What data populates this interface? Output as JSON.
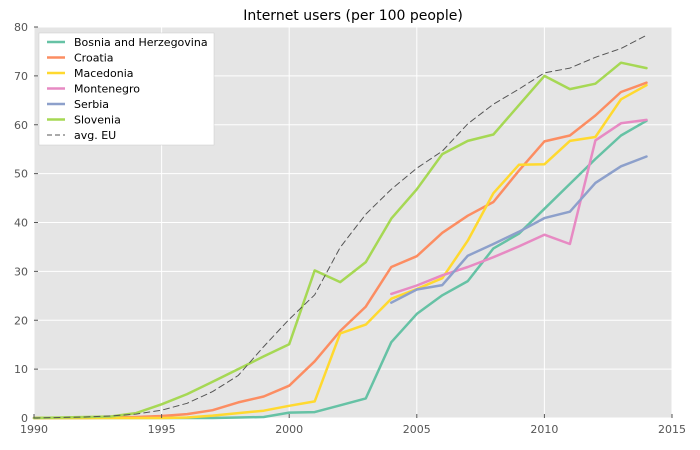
{
  "chart_data": {
    "type": "line",
    "title": "Internet users (per 100 people)",
    "xlabel": "",
    "ylabel": "",
    "xlim": [
      1990,
      2015
    ],
    "ylim": [
      0,
      80
    ],
    "x_ticks": [
      "1990",
      "1995",
      "2000",
      "2005",
      "2010",
      "2015"
    ],
    "y_ticks": [
      "0",
      "10",
      "20",
      "30",
      "40",
      "50",
      "60",
      "70",
      "80"
    ],
    "grid": true,
    "legend_position": "top-left",
    "background": "#e5e5e5",
    "series": [
      {
        "name": "Bosnia and Herzegovina",
        "color": "#66c2a5",
        "style": "solid",
        "x": [
          1990,
          1991,
          1992,
          1993,
          1994,
          1995,
          1996,
          1997,
          1998,
          1999,
          2000,
          2001,
          2002,
          2003,
          2004,
          2005,
          2006,
          2007,
          2008,
          2009,
          2010,
          2011,
          2012,
          2013,
          2014
        ],
        "y": [
          0,
          0,
          0,
          0,
          0,
          0,
          0,
          0,
          0.1,
          0.2,
          1.1,
          1.2,
          2.6,
          4.0,
          15.5,
          21.3,
          25.1,
          28.0,
          34.7,
          37.7,
          42.8,
          47.9,
          53.0,
          57.8,
          60.8
        ]
      },
      {
        "name": "Croatia",
        "color": "#fc8d62",
        "style": "solid",
        "x": [
          1990,
          1991,
          1992,
          1993,
          1994,
          1995,
          1996,
          1997,
          1998,
          1999,
          2000,
          2001,
          2002,
          2003,
          2004,
          2005,
          2006,
          2007,
          2008,
          2009,
          2010,
          2011,
          2012,
          2013,
          2014
        ],
        "y": [
          0,
          0,
          0,
          0.1,
          0.2,
          0.4,
          0.8,
          1.6,
          3.2,
          4.4,
          6.6,
          11.6,
          17.8,
          22.8,
          30.9,
          33.1,
          37.9,
          41.4,
          44.2,
          50.6,
          56.6,
          57.8,
          61.9,
          66.7,
          68.6
        ]
      },
      {
        "name": "Macedonia",
        "color": "#ffd92f",
        "style": "solid",
        "x": [
          1990,
          1991,
          1992,
          1993,
          1994,
          1995,
          1996,
          1997,
          1998,
          1999,
          2000,
          2001,
          2002,
          2003,
          2004,
          2005,
          2006,
          2007,
          2008,
          2009,
          2010,
          2011,
          2012,
          2013,
          2014
        ],
        "y": [
          0,
          0,
          0,
          0,
          0,
          0,
          0.1,
          0.5,
          1.0,
          1.5,
          2.5,
          3.4,
          17.3,
          19.1,
          24.4,
          26.4,
          28.6,
          36.3,
          46.0,
          51.8,
          51.9,
          56.7,
          57.5,
          65.2,
          68.1
        ]
      },
      {
        "name": "Montenegro",
        "color": "#e78ac3",
        "style": "solid",
        "x": [
          2004,
          2005,
          2006,
          2007,
          2008,
          2009,
          2010,
          2011,
          2012,
          2013,
          2014
        ],
        "y": [
          25.4,
          27.1,
          29.2,
          30.9,
          32.9,
          35.1,
          37.5,
          35.6,
          56.8,
          60.3,
          61.0
        ]
      },
      {
        "name": "Serbia",
        "color": "#8da0cb",
        "style": "solid",
        "x": [
          2004,
          2005,
          2006,
          2007,
          2008,
          2009,
          2010,
          2011,
          2012,
          2013,
          2014
        ],
        "y": [
          23.6,
          26.3,
          27.2,
          33.2,
          35.6,
          38.1,
          40.9,
          42.2,
          48.1,
          51.5,
          53.5
        ]
      },
      {
        "name": "Slovenia",
        "color": "#a6d854",
        "style": "solid",
        "x": [
          1990,
          1991,
          1992,
          1993,
          1994,
          1995,
          1996,
          1997,
          1998,
          1999,
          2000,
          2001,
          2002,
          2003,
          2004,
          2005,
          2006,
          2007,
          2008,
          2009,
          2010,
          2011,
          2012,
          2013,
          2014
        ],
        "y": [
          0,
          0.1,
          0.2,
          0.3,
          1.0,
          2.8,
          4.9,
          7.4,
          10.0,
          12.6,
          15.1,
          30.2,
          27.8,
          31.9,
          40.8,
          46.8,
          54.0,
          56.7,
          58.0,
          64.0,
          70.0,
          67.3,
          68.4,
          72.7,
          71.6
        ]
      },
      {
        "name": "avg. EU",
        "color": "#555555",
        "style": "dashed",
        "x": [
          1990,
          1991,
          1992,
          1993,
          1994,
          1995,
          1996,
          1997,
          1998,
          1999,
          2000,
          2001,
          2002,
          2003,
          2004,
          2005,
          2006,
          2007,
          2008,
          2009,
          2010,
          2011,
          2012,
          2013,
          2014
        ],
        "y": [
          0,
          0.1,
          0.2,
          0.4,
          0.8,
          1.6,
          3.0,
          5.4,
          8.7,
          14.6,
          20.2,
          25.2,
          34.9,
          41.7,
          46.8,
          51.1,
          54.6,
          60.2,
          64.2,
          67.3,
          70.6,
          71.6,
          73.8,
          75.6,
          78.3
        ]
      }
    ]
  }
}
